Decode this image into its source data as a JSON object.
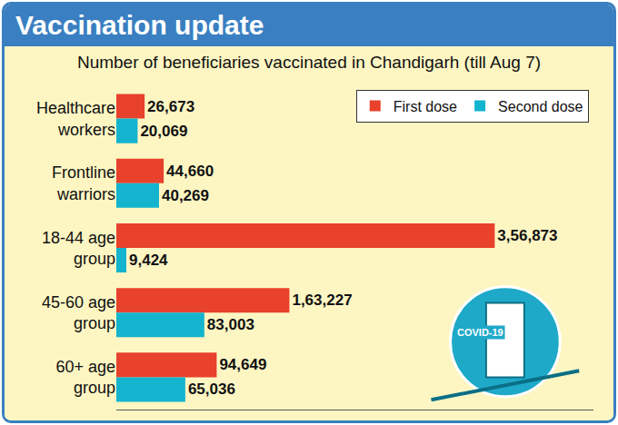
{
  "chart_data": {
    "type": "bar",
    "title": "Vaccination update",
    "subtitle": "Number of beneficiaries vaccinated in Chandigarh (till Aug 7)",
    "orientation": "horizontal",
    "categories": [
      "Healthcare workers",
      "Frontline warriors",
      "18-44 age group",
      "45-60 age group",
      "60+ age group"
    ],
    "series": [
      {
        "name": "First dose",
        "color": "#e8412c",
        "values": [
          26673,
          44660,
          356873,
          163227,
          94649
        ],
        "value_labels": [
          "26,673",
          "44,660",
          "3,56,873",
          "1,63,227",
          "94,649"
        ]
      },
      {
        "name": "Second dose",
        "color": "#14b4cf",
        "values": [
          20069,
          40269,
          9424,
          83003,
          65036
        ],
        "value_labels": [
          "20,069",
          "40,269",
          "9,424",
          "83,003",
          "65,036"
        ]
      }
    ],
    "xlim": [
      0,
      450000
    ],
    "tick_labels": "y",
    "grid": false,
    "legend": "top right",
    "data_labels": true,
    "annotations": [
      "COVID-19"
    ]
  }
}
